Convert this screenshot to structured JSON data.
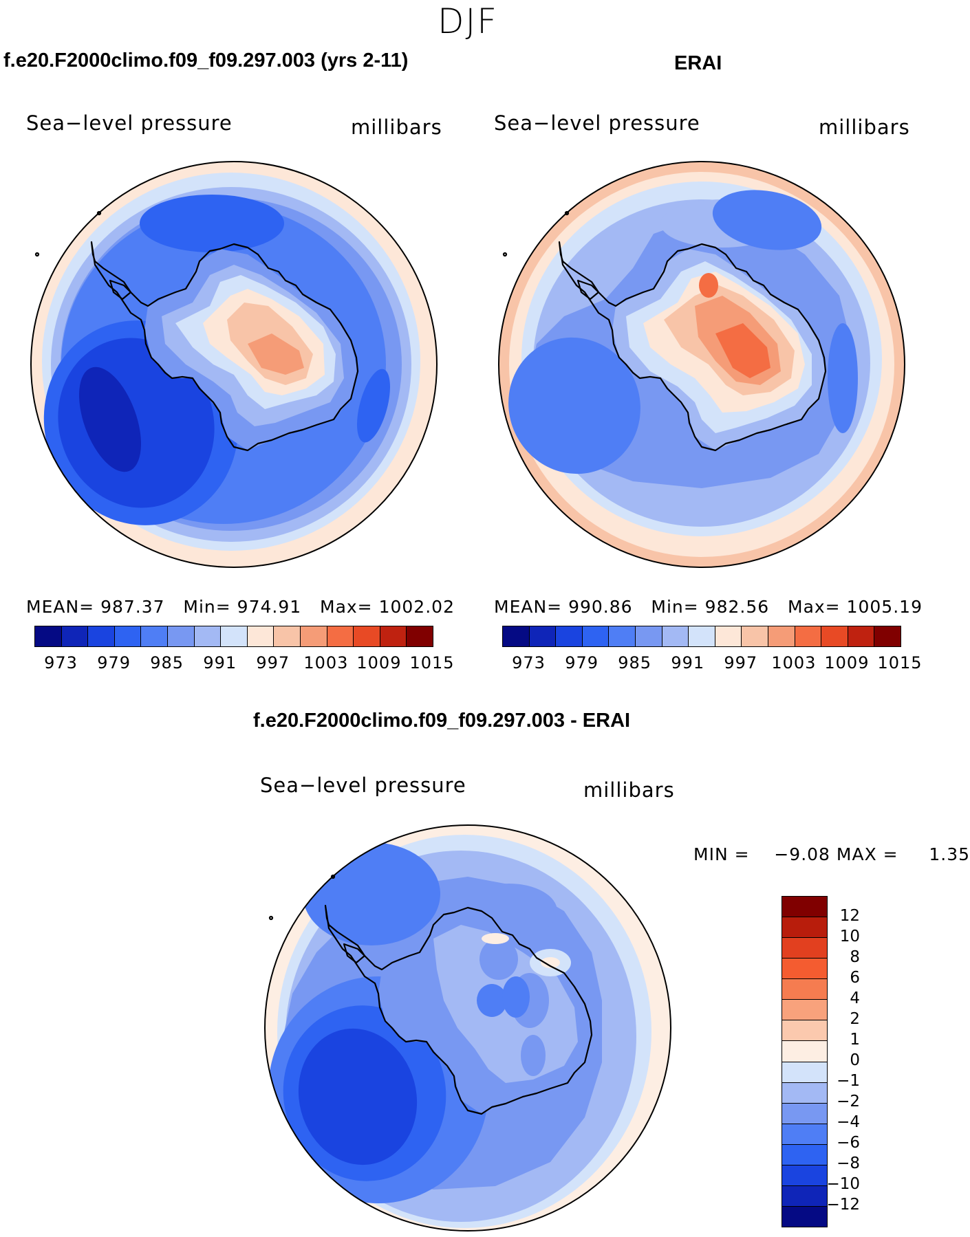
{
  "season": "DJF",
  "panels": [
    {
      "title": "f.e20.F2000climo.f09_f09.297.003 (yrs 2-11)",
      "variable": "Sea−level pressure",
      "units": "millibars",
      "stats": {
        "mean_label": "MEAN=",
        "mean": "987.37",
        "min_label": "Min=",
        "min": "974.91",
        "max_label": "Max=",
        "max": "1002.02"
      },
      "colorbar_ticks": [
        "973",
        "979",
        "985",
        "991",
        "997",
        "1003",
        "1009",
        "1015"
      ]
    },
    {
      "title": "ERAI",
      "variable": "Sea−level pressure",
      "units": "millibars",
      "stats": {
        "mean_label": "MEAN=",
        "mean": "990.86",
        "min_label": "Min=",
        "min": "982.56",
        "max_label": "Max=",
        "max": "1005.19"
      },
      "colorbar_ticks": [
        "973",
        "979",
        "985",
        "991",
        "997",
        "1003",
        "1009",
        "1015"
      ]
    }
  ],
  "diff_panel": {
    "title": "f.e20.F2000climo.f09_f09.297.003 - ERAI",
    "variable": "Sea−level pressure",
    "units": "millibars",
    "stats": {
      "min_label": "MIN =",
      "min": "−9.08",
      "max_label": "MAX =",
      "max": "1.35"
    },
    "colorbar_ticks": [
      "12",
      "10",
      "8",
      "6",
      "4",
      "2",
      "1",
      "0",
      "−1",
      "−2",
      "−4",
      "−6",
      "−8",
      "−10",
      "−12"
    ]
  },
  "colors": {
    "slp_palette": [
      "#050a84",
      "#0f25b8",
      "#1a44e0",
      "#2e63f2",
      "#4f7ef5",
      "#7898f2",
      "#a3b9f4",
      "#d3e3fa",
      "#fde7d8",
      "#f8c4a8",
      "#f59c77",
      "#f46d43",
      "#e84a25",
      "#bf2210",
      "#800000"
    ],
    "diff_palette": [
      "#800000",
      "#b81d0c",
      "#e2401f",
      "#f45c30",
      "#f57c50",
      "#f8a27c",
      "#fbc9ae",
      "#fdeee3",
      "#d3e3fa",
      "#a3b9f4",
      "#7898f2",
      "#4f7ef5",
      "#2e63f2",
      "#1a44e0",
      "#0f25b8",
      "#050a84"
    ]
  }
}
